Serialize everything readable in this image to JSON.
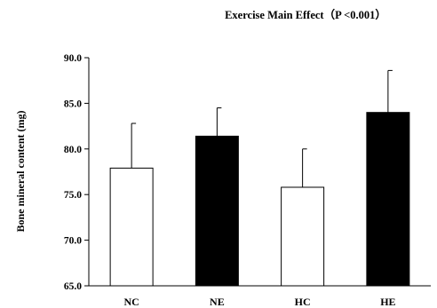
{
  "chart_data": {
    "type": "bar",
    "title": "Exercise   Main Effect（P <0.001）",
    "xlabel": "",
    "ylabel": "Bone mineral content (mg)",
    "categories": [
      "NC",
      "NE",
      "HC",
      "HE"
    ],
    "values": [
      77.9,
      81.4,
      75.8,
      84.0
    ],
    "errors": [
      4.9,
      3.1,
      4.2,
      4.6
    ],
    "fills": [
      "#ffffff",
      "#000000",
      "#ffffff",
      "#000000"
    ],
    "ylim": [
      65,
      90
    ],
    "yticks": [
      "65.0",
      "70.0",
      "75.0",
      "80.0",
      "85.0",
      "90.0"
    ],
    "grid": false,
    "legend": "none"
  }
}
